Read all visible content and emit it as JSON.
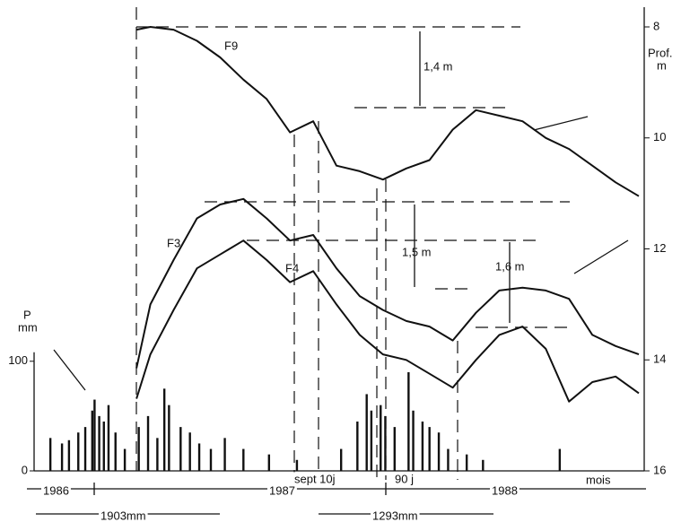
{
  "chart_data": {
    "type": "line",
    "x": [
      4.4,
      5,
      6,
      7,
      8,
      9,
      10,
      11,
      12,
      13,
      14,
      15,
      16,
      17,
      18,
      19,
      20,
      21,
      22,
      23,
      24,
      25,
      26
    ],
    "xlim": [
      0,
      26
    ],
    "series": [
      {
        "name": "F9",
        "color": "#111111",
        "axis": "y2",
        "values": [
          8.05,
          8.0,
          8.05,
          8.25,
          8.55,
          8.95,
          9.3,
          9.9,
          9.7,
          10.5,
          10.6,
          10.75,
          10.55,
          10.4,
          9.85,
          9.5,
          9.6,
          9.7,
          10.0,
          10.2,
          10.5,
          10.8,
          11.05
        ]
      },
      {
        "name": "F3",
        "color": "#111111",
        "axis": "y2",
        "values": [
          14.15,
          13.0,
          12.2,
          11.45,
          11.2,
          11.1,
          11.45,
          11.85,
          11.75,
          12.35,
          12.85,
          13.1,
          13.3,
          13.4,
          13.65,
          13.15,
          12.75,
          12.7,
          12.75,
          12.9,
          13.55,
          13.75,
          13.9
        ]
      },
      {
        "name": "F4",
        "color": "#111111",
        "axis": "y2",
        "values": [
          14.7,
          13.9,
          13.1,
          12.35,
          12.1,
          11.85,
          12.2,
          12.6,
          12.4,
          13.0,
          13.55,
          13.9,
          14.0,
          14.25,
          14.5,
          14.0,
          13.55,
          13.4,
          13.8,
          14.75,
          14.4,
          14.3,
          14.6
        ]
      }
    ],
    "bars": {
      "color": "#111111",
      "x": [
        0.7,
        1.2,
        1.5,
        1.9,
        2.2,
        2.5,
        2.6,
        2.8,
        3.0,
        3.2,
        3.5,
        3.9,
        4.5,
        4.9,
        5.3,
        5.6,
        5.8,
        6.3,
        6.7,
        7.1,
        7.6,
        8.2,
        9.0,
        10.1,
        11.3,
        13.2,
        13.9,
        14.3,
        14.5,
        14.9,
        15.1,
        15.5,
        16.1,
        16.3,
        16.7,
        17.0,
        17.4,
        17.8,
        18.6,
        19.3,
        22.6
      ],
      "values": [
        30,
        25,
        28,
        35,
        40,
        55,
        65,
        50,
        45,
        60,
        35,
        20,
        40,
        50,
        30,
        75,
        60,
        40,
        35,
        25,
        20,
        30,
        20,
        15,
        10,
        20,
        45,
        70,
        55,
        60,
        50,
        40,
        90,
        55,
        45,
        40,
        35,
        20,
        15,
        10,
        20
      ]
    },
    "ylabel": [
      "P",
      "mm"
    ],
    "ylim": [
      0,
      405
    ],
    "yticks": [
      0,
      100
    ],
    "y2label": [
      "Prof.",
      "m"
    ],
    "y2lim": [
      8,
      16
    ],
    "y2ticks": [
      8,
      10,
      12,
      14,
      16
    ],
    "y2_inverted": true,
    "annotations": [
      "1,4 m",
      "1,5 m",
      "1,6 m",
      "1986",
      "1987",
      "1988",
      "mois",
      "sept 10j",
      "90 j",
      "1903mm",
      "1293mm"
    ]
  }
}
